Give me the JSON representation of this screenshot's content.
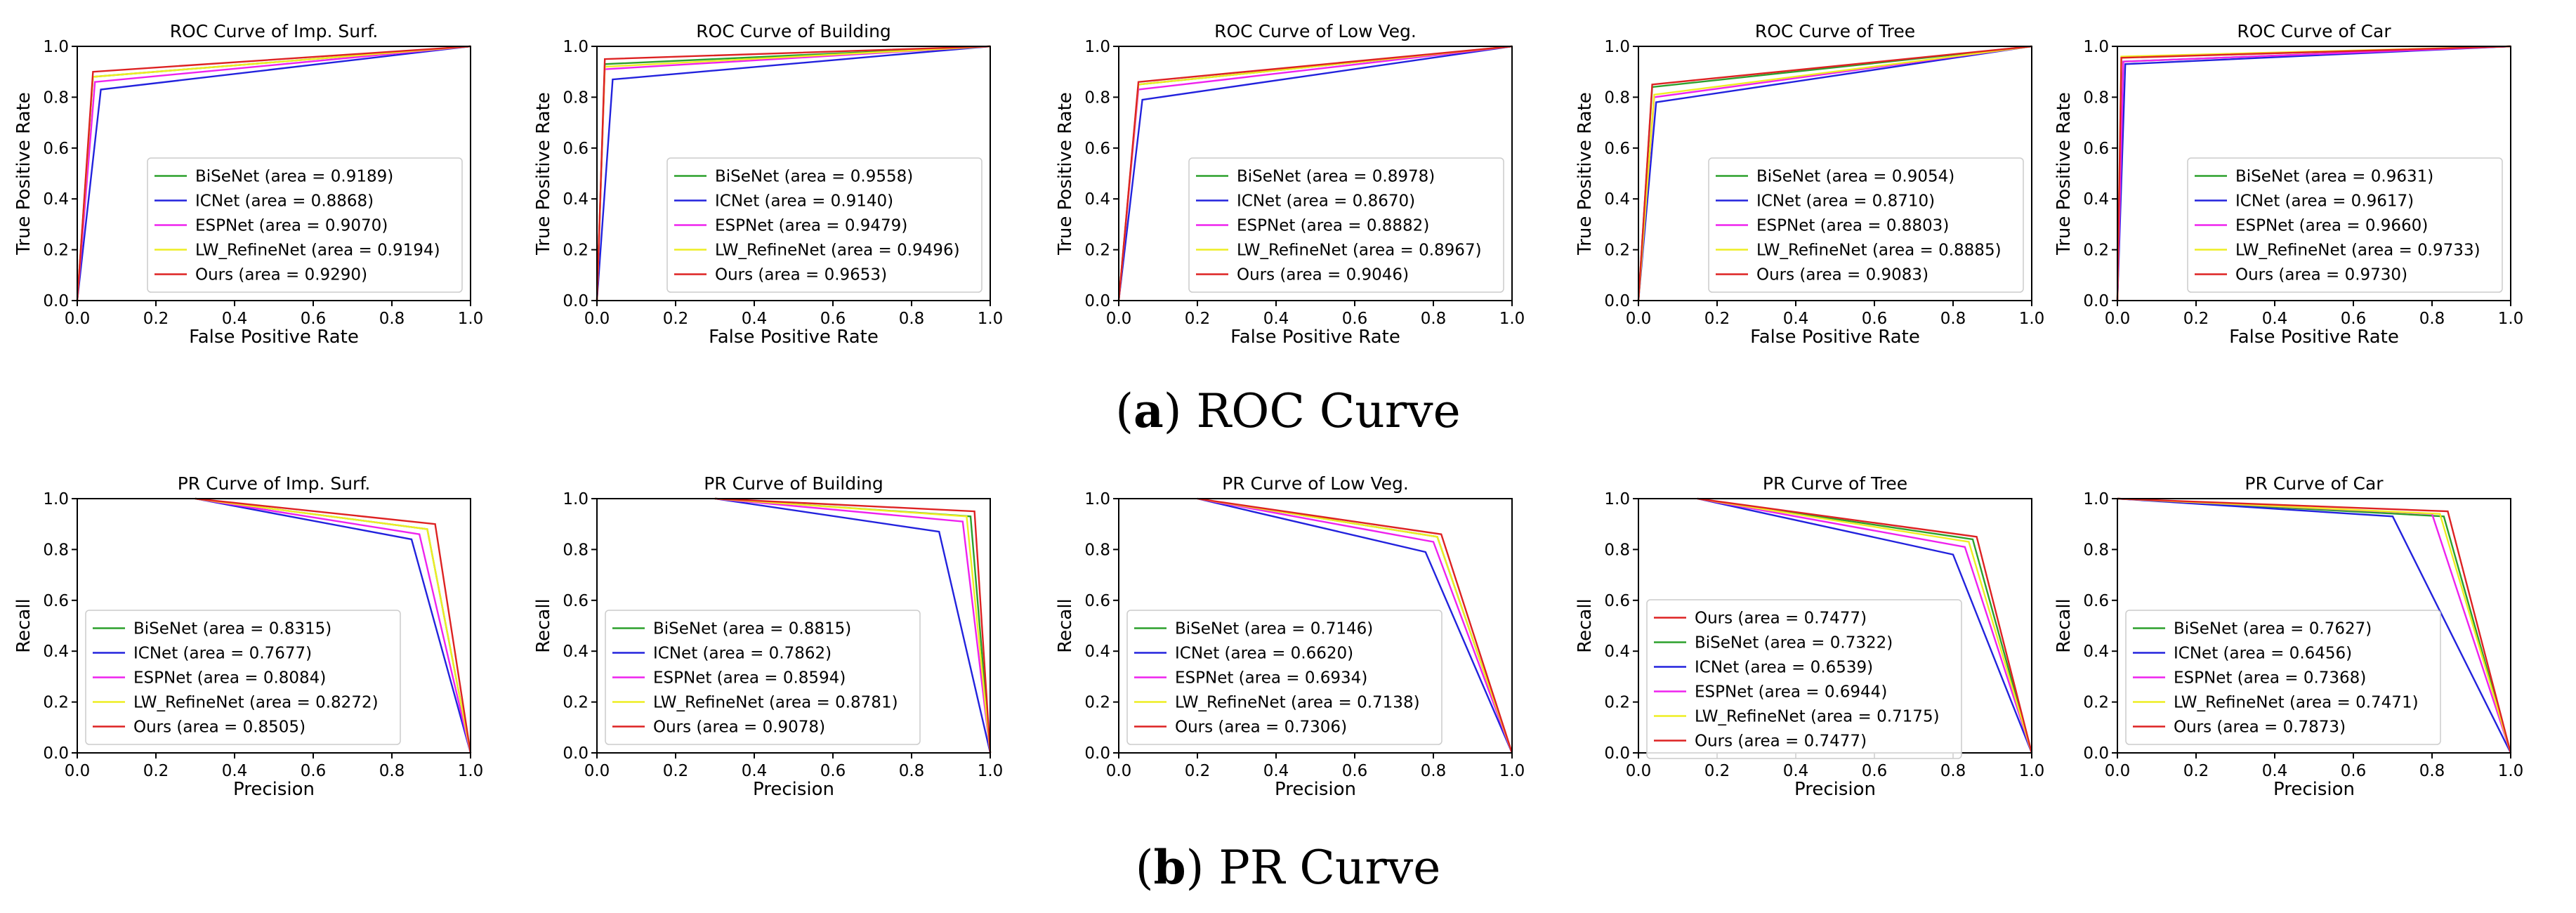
{
  "captions": {
    "roc": {
      "letter": "a",
      "text": "ROC Curve"
    },
    "pr": {
      "letter": "b",
      "text": "PR Curve"
    }
  },
  "colors": {
    "BiSeNet": "#2ca02c",
    "ICNet": "#2222dd",
    "ESPNet": "#ee22ee",
    "LW_RefineNet": "#eeee22",
    "Ours": "#dd2222"
  },
  "chart_data": [
    {
      "type": "line",
      "group": "roc",
      "title": "ROC Curve of Imp. Surf.",
      "xlabel": "False Positive Rate",
      "ylabel": "True Positive Rate",
      "xlim": [
        0,
        1
      ],
      "ylim": [
        0,
        1
      ],
      "xticks": [
        "0.0",
        "0.2",
        "0.4",
        "0.6",
        "0.8",
        "1.0"
      ],
      "yticks": [
        "0.0",
        "0.2",
        "0.4",
        "0.6",
        "0.8",
        "1.0"
      ],
      "legend_position": "lower-right",
      "series": [
        {
          "name": "BiSeNet",
          "legend": "BiSeNet (area = 0.9189)",
          "x": [
            0,
            0.04,
            1
          ],
          "y": [
            0,
            0.88,
            1
          ]
        },
        {
          "name": "ICNet",
          "legend": "ICNet (area = 0.8868)",
          "x": [
            0,
            0.06,
            1
          ],
          "y": [
            0,
            0.83,
            1
          ]
        },
        {
          "name": "ESPNet",
          "legend": "ESPNet (area = 0.9070)",
          "x": [
            0,
            0.045,
            1
          ],
          "y": [
            0,
            0.86,
            1
          ]
        },
        {
          "name": "LW_RefineNet",
          "legend": "LW_RefineNet (area = 0.9194)",
          "x": [
            0,
            0.04,
            1
          ],
          "y": [
            0,
            0.88,
            1
          ]
        },
        {
          "name": "Ours",
          "legend": "Ours (area = 0.9290)",
          "x": [
            0,
            0.04,
            1
          ],
          "y": [
            0,
            0.9,
            1
          ]
        }
      ]
    },
    {
      "type": "line",
      "group": "roc",
      "title": "ROC Curve of Building",
      "xlabel": "False Positive Rate",
      "ylabel": "True Positive Rate",
      "xlim": [
        0,
        1
      ],
      "ylim": [
        0,
        1
      ],
      "xticks": [
        "0.0",
        "0.2",
        "0.4",
        "0.6",
        "0.8",
        "1.0"
      ],
      "yticks": [
        "0.0",
        "0.2",
        "0.4",
        "0.6",
        "0.8",
        "1.0"
      ],
      "legend_position": "lower-right",
      "series": [
        {
          "name": "BiSeNet",
          "legend": "BiSeNet (area = 0.9558)",
          "x": [
            0,
            0.02,
            1
          ],
          "y": [
            0,
            0.93,
            1
          ]
        },
        {
          "name": "ICNet",
          "legend": "ICNet (area = 0.9140)",
          "x": [
            0,
            0.04,
            1
          ],
          "y": [
            0,
            0.87,
            1
          ]
        },
        {
          "name": "ESPNet",
          "legend": "ESPNet (area = 0.9479)",
          "x": [
            0,
            0.02,
            1
          ],
          "y": [
            0,
            0.91,
            1
          ]
        },
        {
          "name": "LW_RefineNet",
          "legend": "LW_RefineNet (area = 0.9496)",
          "x": [
            0,
            0.02,
            1
          ],
          "y": [
            0,
            0.92,
            1
          ]
        },
        {
          "name": "Ours",
          "legend": "Ours (area = 0.9653)",
          "x": [
            0,
            0.02,
            1
          ],
          "y": [
            0,
            0.95,
            1
          ]
        }
      ]
    },
    {
      "type": "line",
      "group": "roc",
      "title": "ROC Curve of Low Veg.",
      "xlabel": "False Positive Rate",
      "ylabel": "True Positive Rate",
      "xlim": [
        0,
        1
      ],
      "ylim": [
        0,
        1
      ],
      "xticks": [
        "0.0",
        "0.2",
        "0.4",
        "0.6",
        "0.8",
        "1.0"
      ],
      "yticks": [
        "0.0",
        "0.2",
        "0.4",
        "0.6",
        "0.8",
        "1.0"
      ],
      "legend_position": "lower-right",
      "series": [
        {
          "name": "BiSeNet",
          "legend": "BiSeNet (area = 0.8978)",
          "x": [
            0,
            0.05,
            1
          ],
          "y": [
            0,
            0.85,
            1
          ]
        },
        {
          "name": "ICNet",
          "legend": "ICNet (area = 0.8670)",
          "x": [
            0,
            0.06,
            1
          ],
          "y": [
            0,
            0.79,
            1
          ]
        },
        {
          "name": "ESPNet",
          "legend": "ESPNet (area = 0.8882)",
          "x": [
            0,
            0.05,
            1
          ],
          "y": [
            0,
            0.83,
            1
          ]
        },
        {
          "name": "LW_RefineNet",
          "legend": "LW_RefineNet (area = 0.8967)",
          "x": [
            0,
            0.05,
            1
          ],
          "y": [
            0,
            0.85,
            1
          ]
        },
        {
          "name": "Ours",
          "legend": "Ours (area = 0.9046)",
          "x": [
            0,
            0.05,
            1
          ],
          "y": [
            0,
            0.86,
            1
          ]
        }
      ]
    },
    {
      "type": "line",
      "group": "roc",
      "title": "ROC Curve of Tree",
      "xlabel": "False Positive Rate",
      "ylabel": "True Positive Rate",
      "xlim": [
        0,
        1
      ],
      "ylim": [
        0,
        1
      ],
      "xticks": [
        "0.0",
        "0.2",
        "0.4",
        "0.6",
        "0.8",
        "1.0"
      ],
      "yticks": [
        "0.0",
        "0.2",
        "0.4",
        "0.6",
        "0.8",
        "1.0"
      ],
      "legend_position": "lower-right",
      "series": [
        {
          "name": "BiSeNet",
          "legend": "BiSeNet (area = 0.9054)",
          "x": [
            0,
            0.035,
            1
          ],
          "y": [
            0,
            0.84,
            1
          ]
        },
        {
          "name": "ICNet",
          "legend": "ICNet (area = 0.8710)",
          "x": [
            0,
            0.045,
            1
          ],
          "y": [
            0,
            0.78,
            1
          ]
        },
        {
          "name": "ESPNet",
          "legend": "ESPNet (area = 0.8803)",
          "x": [
            0,
            0.04,
            1
          ],
          "y": [
            0,
            0.8,
            1
          ]
        },
        {
          "name": "LW_RefineNet",
          "legend": "LW_RefineNet (area = 0.8885)",
          "x": [
            0,
            0.04,
            1
          ],
          "y": [
            0,
            0.81,
            1
          ]
        },
        {
          "name": "Ours",
          "legend": "Ours (area = 0.9083)",
          "x": [
            0,
            0.035,
            1
          ],
          "y": [
            0,
            0.85,
            1
          ]
        }
      ]
    },
    {
      "type": "line",
      "group": "roc",
      "title": "ROC Curve of Car",
      "xlabel": "False Positive Rate",
      "ylabel": "True Positive Rate",
      "xlim": [
        0,
        1
      ],
      "ylim": [
        0,
        1
      ],
      "xticks": [
        "0.0",
        "0.2",
        "0.4",
        "0.6",
        "0.8",
        "1.0"
      ],
      "yticks": [
        "0.0",
        "0.2",
        "0.4",
        "0.6",
        "0.8",
        "1.0"
      ],
      "legend_position": "lower-right",
      "series": [
        {
          "name": "BiSeNet",
          "legend": "BiSeNet (area = 0.9631)",
          "x": [
            0,
            0.015,
            1
          ],
          "y": [
            0,
            0.94,
            1
          ]
        },
        {
          "name": "ICNet",
          "legend": "ICNet (area = 0.9617)",
          "x": [
            0,
            0.02,
            1
          ],
          "y": [
            0,
            0.93,
            1
          ]
        },
        {
          "name": "ESPNet",
          "legend": "ESPNet (area = 0.9660)",
          "x": [
            0,
            0.015,
            1
          ],
          "y": [
            0,
            0.94,
            1
          ]
        },
        {
          "name": "LW_RefineNet",
          "legend": "LW_RefineNet (area = 0.9733)",
          "x": [
            0,
            0.01,
            1
          ],
          "y": [
            0,
            0.96,
            1
          ]
        },
        {
          "name": "Ours",
          "legend": "Ours (area = 0.9730)",
          "x": [
            0,
            0.01,
            1
          ],
          "y": [
            0,
            0.955,
            1
          ]
        }
      ]
    },
    {
      "type": "line",
      "group": "pr",
      "title": "PR Curve of Imp. Surf.",
      "xlabel": "Precision",
      "ylabel": "Recall",
      "xlim": [
        0,
        1
      ],
      "ylim": [
        0,
        1
      ],
      "xticks": [
        "0.0",
        "0.2",
        "0.4",
        "0.6",
        "0.8",
        "1.0"
      ],
      "yticks": [
        "0.0",
        "0.2",
        "0.4",
        "0.6",
        "0.8",
        "1.0"
      ],
      "legend_position": "lower-left",
      "series": [
        {
          "name": "BiSeNet",
          "legend": "BiSeNet (area = 0.8315)",
          "x": [
            0.3,
            0.89,
            1
          ],
          "y": [
            1,
            0.88,
            0
          ]
        },
        {
          "name": "ICNet",
          "legend": "ICNet (area = 0.7677)",
          "x": [
            0.3,
            0.85,
            1
          ],
          "y": [
            1,
            0.84,
            0
          ]
        },
        {
          "name": "ESPNet",
          "legend": "ESPNet (area = 0.8084)",
          "x": [
            0.3,
            0.87,
            1
          ],
          "y": [
            1,
            0.86,
            0
          ]
        },
        {
          "name": "LW_RefineNet",
          "legend": "LW_RefineNet (area = 0.8272)",
          "x": [
            0.3,
            0.89,
            1
          ],
          "y": [
            1,
            0.88,
            0
          ]
        },
        {
          "name": "Ours",
          "legend": "Ours (area = 0.8505)",
          "x": [
            0.3,
            0.91,
            1
          ],
          "y": [
            1,
            0.9,
            0
          ]
        }
      ]
    },
    {
      "type": "line",
      "group": "pr",
      "title": "PR Curve of Building",
      "xlabel": "Precision",
      "ylabel": "Recall",
      "xlim": [
        0,
        1
      ],
      "ylim": [
        0,
        1
      ],
      "xticks": [
        "0.0",
        "0.2",
        "0.4",
        "0.6",
        "0.8",
        "1.0"
      ],
      "yticks": [
        "0.0",
        "0.2",
        "0.4",
        "0.6",
        "0.8",
        "1.0"
      ],
      "legend_position": "lower-left",
      "series": [
        {
          "name": "BiSeNet",
          "legend": "BiSeNet (area = 0.8815)",
          "x": [
            0.3,
            0.95,
            1
          ],
          "y": [
            1,
            0.93,
            0
          ]
        },
        {
          "name": "ICNet",
          "legend": "ICNet (area = 0.7862)",
          "x": [
            0.3,
            0.87,
            1
          ],
          "y": [
            1,
            0.87,
            0
          ]
        },
        {
          "name": "ESPNet",
          "legend": "ESPNet (area = 0.8594)",
          "x": [
            0.3,
            0.93,
            1
          ],
          "y": [
            1,
            0.91,
            0
          ]
        },
        {
          "name": "LW_RefineNet",
          "legend": "LW_RefineNet (area = 0.8781)",
          "x": [
            0.3,
            0.94,
            1
          ],
          "y": [
            1,
            0.93,
            0
          ]
        },
        {
          "name": "Ours",
          "legend": "Ours (area = 0.9078)",
          "x": [
            0.3,
            0.96,
            1
          ],
          "y": [
            1,
            0.95,
            0
          ]
        }
      ]
    },
    {
      "type": "line",
      "group": "pr",
      "title": "PR Curve of Low Veg.",
      "xlabel": "Precision",
      "ylabel": "Recall",
      "xlim": [
        0,
        1
      ],
      "ylim": [
        0,
        1
      ],
      "xticks": [
        "0.0",
        "0.2",
        "0.4",
        "0.6",
        "0.8",
        "1.0"
      ],
      "yticks": [
        "0.0",
        "0.2",
        "0.4",
        "0.6",
        "0.8",
        "1.0"
      ],
      "legend_position": "lower-left",
      "series": [
        {
          "name": "BiSeNet",
          "legend": "BiSeNet (area = 0.7146)",
          "x": [
            0.2,
            0.81,
            1
          ],
          "y": [
            1,
            0.85,
            0
          ]
        },
        {
          "name": "ICNet",
          "legend": "ICNet (area = 0.6620)",
          "x": [
            0.2,
            0.78,
            1
          ],
          "y": [
            1,
            0.79,
            0
          ]
        },
        {
          "name": "ESPNet",
          "legend": "ESPNet (area = 0.6934)",
          "x": [
            0.2,
            0.8,
            1
          ],
          "y": [
            1,
            0.83,
            0
          ]
        },
        {
          "name": "LW_RefineNet",
          "legend": "LW_RefineNet (area = 0.7138)",
          "x": [
            0.2,
            0.81,
            1
          ],
          "y": [
            1,
            0.85,
            0
          ]
        },
        {
          "name": "Ours",
          "legend": "Ours (area = 0.7306)",
          "x": [
            0.2,
            0.82,
            1
          ],
          "y": [
            1,
            0.86,
            0
          ]
        }
      ]
    },
    {
      "type": "line",
      "group": "pr",
      "title": "PR Curve of Tree",
      "xlabel": "Precision",
      "ylabel": "Recall",
      "xlim": [
        0,
        1
      ],
      "ylim": [
        0,
        1
      ],
      "xticks": [
        "0.0",
        "0.2",
        "0.4",
        "0.6",
        "0.8",
        "1.0"
      ],
      "yticks": [
        "0.0",
        "0.2",
        "0.4",
        "0.6",
        "0.8",
        "1.0"
      ],
      "legend_position": "upper-left",
      "legend_extra": {
        "name": "Ours",
        "legend": "Ours (area = 0.7477)"
      },
      "series": [
        {
          "name": "BiSeNet",
          "legend": "BiSeNet (area = 0.7322)",
          "x": [
            0.15,
            0.85,
            1
          ],
          "y": [
            1,
            0.84,
            0
          ]
        },
        {
          "name": "ICNet",
          "legend": "ICNet (area = 0.6539)",
          "x": [
            0.15,
            0.8,
            1
          ],
          "y": [
            1,
            0.78,
            0
          ]
        },
        {
          "name": "ESPNet",
          "legend": "ESPNet (area = 0.6944)",
          "x": [
            0.15,
            0.83,
            1
          ],
          "y": [
            1,
            0.81,
            0
          ]
        },
        {
          "name": "LW_RefineNet",
          "legend": "LW_RefineNet (area = 0.7175)",
          "x": [
            0.15,
            0.84,
            1
          ],
          "y": [
            1,
            0.83,
            0
          ]
        },
        {
          "name": "Ours",
          "legend": "Ours (area = 0.7477)",
          "x": [
            0.15,
            0.86,
            1
          ],
          "y": [
            1,
            0.85,
            0
          ]
        }
      ]
    },
    {
      "type": "line",
      "group": "pr",
      "title": "PR Curve of Car",
      "xlabel": "Precision",
      "ylabel": "Recall",
      "xlim": [
        0,
        1
      ],
      "ylim": [
        0,
        1
      ],
      "xticks": [
        "0.0",
        "0.2",
        "0.4",
        "0.6",
        "0.8",
        "1.0"
      ],
      "yticks": [
        "0.0",
        "0.2",
        "0.4",
        "0.6",
        "0.8",
        "1.0"
      ],
      "legend_position": "lower-left",
      "series": [
        {
          "name": "BiSeNet",
          "legend": "BiSeNet (area = 0.7627)",
          "x": [
            0,
            0.83,
            1
          ],
          "y": [
            1,
            0.93,
            0
          ]
        },
        {
          "name": "ICNet",
          "legend": "ICNet (area = 0.6456)",
          "x": [
            0,
            0.7,
            1
          ],
          "y": [
            1,
            0.93,
            0
          ]
        },
        {
          "name": "ESPNet",
          "legend": "ESPNet (area = 0.7368)",
          "x": [
            0,
            0.8,
            1
          ],
          "y": [
            1,
            0.94,
            0
          ]
        },
        {
          "name": "LW_RefineNet",
          "legend": "LW_RefineNet (area = 0.7471)",
          "x": [
            0,
            0.82,
            1
          ],
          "y": [
            1,
            0.94,
            0
          ]
        },
        {
          "name": "Ours",
          "legend": "Ours (area = 0.7873)",
          "x": [
            0,
            0.84,
            1
          ],
          "y": [
            1,
            0.95,
            0
          ]
        }
      ]
    }
  ]
}
